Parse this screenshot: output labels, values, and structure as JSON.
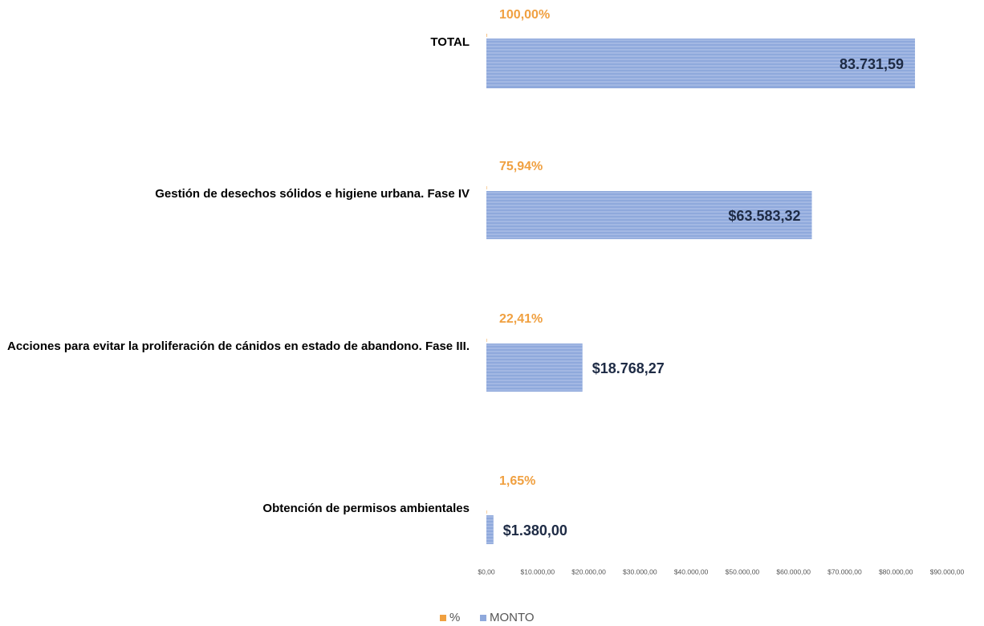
{
  "chart_data": {
    "type": "bar",
    "orientation": "horizontal",
    "categories": [
      "TOTAL",
      "Gestión de desechos sólidos e higiene urbana. Fase IV",
      "Acciones para evitar la proliferación de cánidos en estado de abandono. Fase III.",
      "Obtención de permisos ambientales"
    ],
    "series": [
      {
        "name": "%",
        "color": "#f0a040",
        "values": [
          100,
          75.94,
          22.41,
          1.65
        ],
        "value_labels": [
          "100,00%",
          "75,94%",
          "22,41%",
          "1,65%"
        ]
      },
      {
        "name": "MONTO",
        "color": "#8fa9dc",
        "values": [
          83731.59,
          63583.32,
          18768.27,
          1380
        ],
        "value_labels": [
          "83.731,59",
          "$63.583,32",
          "$18.768,27",
          "$1.380,00"
        ]
      }
    ],
    "xlim": [
      0,
      90000
    ],
    "xticks": [
      {
        "value": 0,
        "label": "$0,00"
      },
      {
        "value": 10000,
        "label": "$10.000,00"
      },
      {
        "value": 20000,
        "label": "$20.000,00"
      },
      {
        "value": 30000,
        "label": "$30.000,00"
      },
      {
        "value": 40000,
        "label": "$40.000,00"
      },
      {
        "value": 50000,
        "label": "$50.000,00"
      },
      {
        "value": 60000,
        "label": "$60.000,00"
      },
      {
        "value": 70000,
        "label": "$70.000,00"
      },
      {
        "value": 80000,
        "label": "$80.000,00"
      },
      {
        "value": 90000,
        "label": "$90.000,00"
      }
    ],
    "legend": "bottom",
    "grid": false
  }
}
